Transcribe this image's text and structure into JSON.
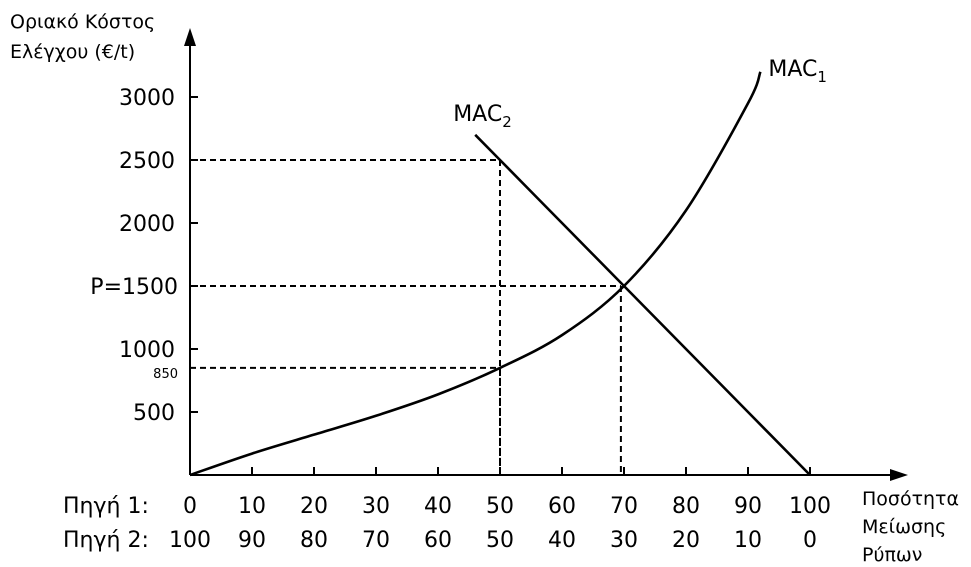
{
  "chart_data": {
    "type": "line",
    "ylabel_lines": [
      "Οριακό Κόστος",
      "Ελέγχου (€/t)"
    ],
    "xlabel_lines": [
      "Ποσότητα",
      "Μείωσης",
      "Ρύπων"
    ],
    "ylim": [
      0,
      3000
    ],
    "xlim": [
      0,
      100
    ],
    "y_ticks": [
      {
        "value": 500,
        "label": "500"
      },
      {
        "value": 1000,
        "label": "1000"
      },
      {
        "value": 2000,
        "label": "2000"
      },
      {
        "value": 2500,
        "label": "2500"
      },
      {
        "value": 3000,
        "label": "3000"
      }
    ],
    "y_special_ticks": [
      {
        "value": 1500,
        "label": "P=1500"
      },
      {
        "value": 850,
        "label": "850"
      }
    ],
    "x_rows": [
      {
        "label": "Πηγή 1:",
        "values": [
          "0",
          "10",
          "20",
          "30",
          "40",
          "50",
          "60",
          "70",
          "80",
          "90",
          "100"
        ]
      },
      {
        "label": "Πηγή 2:",
        "values": [
          "100",
          "90",
          "80",
          "70",
          "60",
          "50",
          "40",
          "30",
          "20",
          "10",
          "0"
        ]
      }
    ],
    "series": [
      {
        "name": "MAC",
        "subscript": "1",
        "x": [
          0,
          10,
          20,
          30,
          40,
          50,
          60,
          70,
          80,
          90,
          92
        ],
        "y": [
          0,
          170,
          320,
          470,
          640,
          850,
          1110,
          1500,
          2100,
          2950,
          3200
        ]
      },
      {
        "name": "MAC",
        "subscript": "2",
        "x": [
          46,
          50,
          60,
          70,
          80,
          90,
          100
        ],
        "y": [
          2700,
          2500,
          2000,
          1500,
          1000,
          500,
          0
        ]
      }
    ],
    "reference_lines": [
      {
        "x": 50,
        "y": 2500
      },
      {
        "x": 50,
        "y": 850
      },
      {
        "x": 69.5,
        "y": 1500
      }
    ],
    "grid": false,
    "legend": "none"
  }
}
